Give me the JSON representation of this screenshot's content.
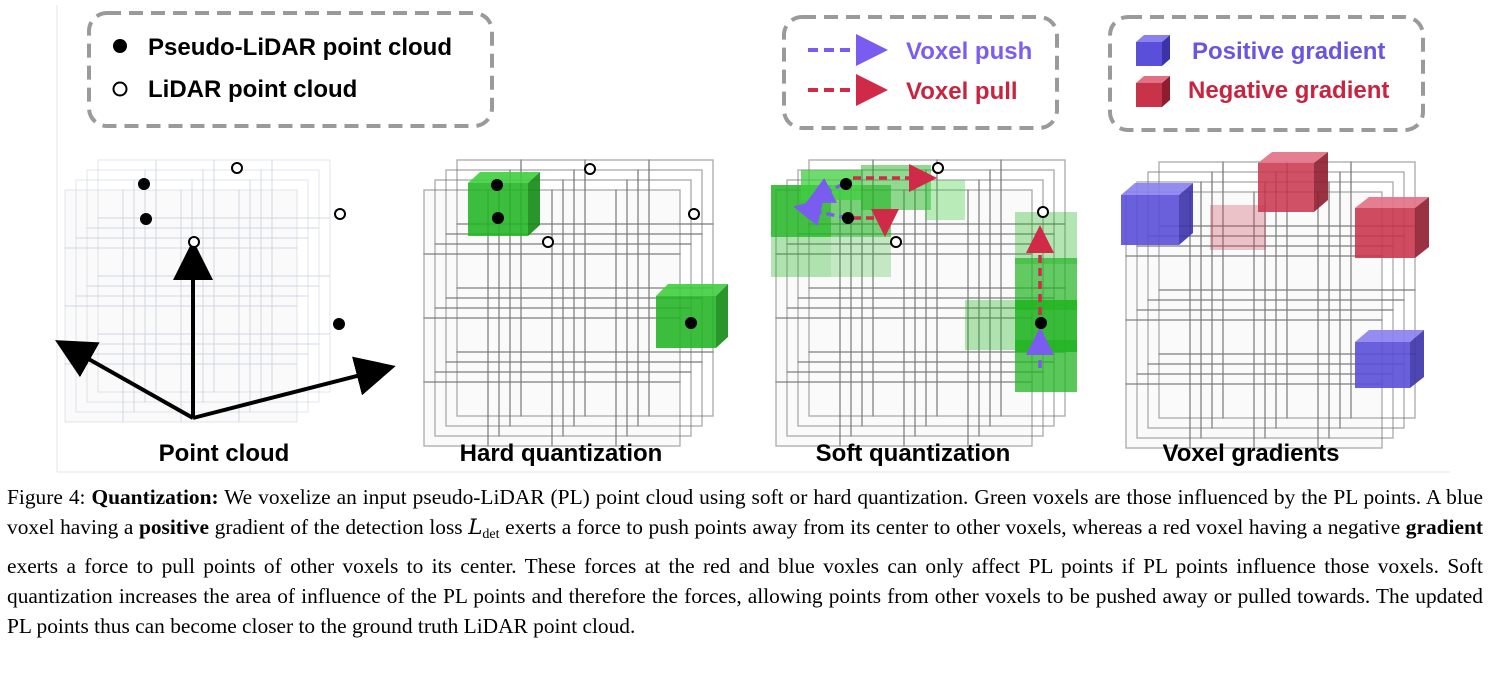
{
  "legend": {
    "pseudo_lidar": "Pseudo-LiDAR point cloud",
    "lidar": "LiDAR point cloud",
    "voxel_push": "Voxel push",
    "voxel_pull": "Voxel pull",
    "positive_gradient": "Positive gradient",
    "negative_gradient": "Negative gradient"
  },
  "panels": {
    "point_cloud": "Point cloud",
    "hard_quantization": "Hard quantization",
    "soft_quantization": "Soft quantization",
    "voxel_gradients": "Voxel gradients"
  },
  "caption": {
    "figure_label": "Figure 4:",
    "title": "Quantization:",
    "seg1": " We voxelize an input pseudo-LiDAR (PL) point cloud using soft or hard quantization. Green voxels are those influenced by the PL points. A blue voxel having a ",
    "bold1": "positive",
    "seg2": " gradient of the detection loss ",
    "loss_symbol": "L",
    "loss_subscript": "det",
    "seg3": " exerts a force to push points away from its center to other voxels, whereas a red voxel having a negative ",
    "bold2": "gradient",
    "seg4": " exerts a force to pull points of other voxels to its center. These forces at the red and blue voxles can only affect PL points if PL points influence those voxels. Soft quantization increases the area of influence of the PL points and therefore the forces, allowing points from other voxels to be pushed away or pulled towards. The updated PL points thus can become closer to the ground truth LiDAR point cloud."
  },
  "colors": {
    "green_voxel": "#22b422",
    "positive_blue": "#5a4fd8",
    "negative_red": "#c8334a",
    "push_arrow": "#7a5cf0",
    "pull_arrow": "#d02a48",
    "push_text": "#7d5cf0",
    "pull_text": "#c8243f"
  }
}
